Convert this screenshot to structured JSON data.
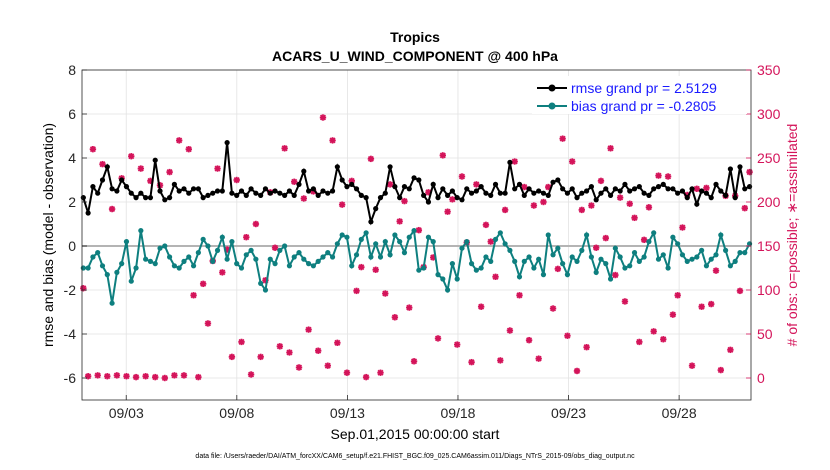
{
  "colors": {
    "rmse": "#000000",
    "bias": "#0e7f7f",
    "obs": "#d4145a",
    "zero": "#b4b4b4",
    "grid": "#e2e2e2"
  },
  "chart_data": {
    "type": "line",
    "title": "Tropics",
    "subtitle": "ACARS_U_WIND_COMPONENT @ 400 hPa",
    "xlabel": "Sep.01,2015 00:00:00 start",
    "ylabel": "rmse and bias (model - observation)",
    "ylabel_right": "# of obs: o=possible; ∗=assimilated",
    "footnote": "data file: /Users/raeder/DAI/ATM_forcXX/CAM6_setup/f.e21.FHIST_BGC.f09_025.CAM6assim.011/Diags_NTrS_2015-09/obs_diag_output.nc",
    "x_ticks": [
      {
        "label": "09/03",
        "day": 3
      },
      {
        "label": "09/08",
        "day": 8
      },
      {
        "label": "09/13",
        "day": 13
      },
      {
        "label": "09/18",
        "day": 18
      },
      {
        "label": "09/23",
        "day": 23
      },
      {
        "label": "09/28",
        "day": 28
      }
    ],
    "xlim_days": [
      1.0,
      31.25
    ],
    "ylim": [
      -7,
      8
    ],
    "y_ticks": [
      "-6",
      "-4",
      "-2",
      "0",
      "2",
      "4",
      "6",
      "8"
    ],
    "y2lim": [
      -25,
      350
    ],
    "y2_ticks": [
      "0",
      "50",
      "100",
      "150",
      "200",
      "250",
      "300",
      "350"
    ],
    "series": [
      {
        "name": "rmse grand pr = 2.5129",
        "values": [
          2.2,
          1.5,
          2.7,
          2.4,
          3.0,
          3.6,
          2.6,
          2.5,
          3.0,
          2.7,
          2.4,
          2.2,
          2.4,
          2.2,
          2.2,
          3.9,
          2.5,
          2.1,
          2.2,
          2.8,
          2.5,
          2.6,
          2.4,
          2.6,
          2.6,
          2.2,
          2.3,
          2.4,
          2.5,
          2.5,
          4.7,
          2.4,
          2.3,
          2.5,
          2.3,
          2.6,
          2.4,
          2.3,
          2.6,
          2.4,
          2.5,
          2.4,
          2.3,
          2.5,
          2.3,
          2.8,
          3.4,
          2.5,
          2.6,
          2.3,
          2.5,
          2.4,
          2.5,
          3.6,
          3.0,
          2.7,
          2.8,
          2.6,
          2.3,
          2.2,
          1.1,
          1.7,
          2.2,
          2.4,
          3.6,
          2.7,
          2.2,
          2.7,
          2.6,
          3.1,
          3.0,
          2.3,
          2.0,
          2.8,
          2.2,
          2.6,
          2.3,
          2.5,
          2.2,
          2.1,
          2.6,
          2.4,
          2.5,
          2.7,
          2.4,
          2.3,
          2.8,
          2.4,
          2.4,
          3.8,
          2.6,
          2.8,
          2.3,
          2.6,
          2.4,
          2.5,
          2.4,
          2.3,
          2.9,
          3.0,
          2.6,
          2.4,
          2.6,
          2.2,
          2.4,
          2.5,
          2.7,
          2.1,
          2.4,
          2.6,
          2.3,
          2.6,
          2.5,
          2.8,
          2.5,
          2.6,
          2.7,
          2.4,
          2.3,
          2.6,
          2.7,
          2.8,
          2.6,
          2.6,
          2.4,
          2.5,
          2.2,
          2.6,
          1.9,
          2.5,
          2.4,
          2.2,
          2.8,
          2.5,
          2.3,
          3.5,
          2.2,
          3.6,
          2.6,
          2.7
        ]
      },
      {
        "name": "bias grand pr = -0.2805",
        "values": [
          -1.0,
          -1.0,
          -0.5,
          -0.3,
          -0.9,
          -1.3,
          -2.6,
          -1.2,
          -0.8,
          0.2,
          -1.6,
          -1.0,
          0.7,
          -0.6,
          -0.7,
          -0.8,
          -0.1,
          0.0,
          -0.5,
          -0.9,
          -1.0,
          -0.7,
          -0.5,
          -0.9,
          -0.3,
          0.3,
          0.0,
          -0.7,
          -0.2,
          0.4,
          -0.6,
          0.2,
          -0.8,
          -1.0,
          -0.4,
          -0.2,
          -0.6,
          -1.7,
          -2.0,
          -0.6,
          -0.8,
          -0.2,
          0.0,
          -0.9,
          -0.5,
          -0.3,
          -0.6,
          -0.8,
          -0.9,
          -0.7,
          -0.5,
          -0.3,
          -0.5,
          0.1,
          0.5,
          0.4,
          -0.9,
          -0.4,
          0.3,
          0.6,
          -0.5,
          0.1,
          -0.5,
          0.2,
          -0.4,
          0.5,
          0.2,
          -0.3,
          0.4,
          0.7,
          -1.1,
          -1.0,
          0.4,
          0.2,
          -1.3,
          -1.5,
          -2.0,
          -0.8,
          -1.5,
          -0.1,
          0.2,
          -0.8,
          -1.1,
          -1.0,
          -0.5,
          -0.7,
          0.3,
          0.6,
          0.1,
          -0.2,
          -0.7,
          -1.4,
          -0.7,
          -0.5,
          -1.0,
          -0.6,
          -1.3,
          0.5,
          -0.4,
          -0.1,
          -0.8,
          -1.3,
          -0.5,
          -0.7,
          -0.2,
          0.5,
          -0.5,
          -1.2,
          -0.6,
          -0.8,
          -1.5,
          -0.1,
          -0.5,
          -1.0,
          -0.9,
          -0.3,
          -0.7,
          -0.5,
          0.2,
          0.6,
          -0.6,
          -0.4,
          -1.0,
          0.4,
          0.1,
          -0.4,
          -0.7,
          -0.6,
          -0.5,
          -0.2,
          -0.9,
          -0.6,
          -0.4,
          0.5,
          -0.2,
          -0.9,
          -0.7,
          -0.3,
          -0.3,
          0.1
        ]
      }
    ],
    "obs_assimilated": [
      102,
      2,
      260,
      3,
      243,
      2,
      192,
      3,
      227,
      2,
      252,
      1,
      238,
      2,
      224,
      1,
      219,
      0,
      234,
      3,
      270,
      3,
      260,
      94,
      1,
      107,
      62,
      133,
      238,
      120,
      146,
      24,
      225,
      41,
      160,
      4,
      175,
      24,
      111,
      211,
      148,
      36,
      261,
      29,
      223,
      12,
      204,
      55,
      212,
      31,
      296,
      14,
      270,
      40,
      197,
      6,
      224,
      99,
      126,
      1,
      249,
      123,
      6,
      96,
      220,
      69,
      178,
      201,
      80,
      19,
      168,
      126,
      211,
      137,
      45,
      253,
      189,
      203,
      38,
      229,
      154,
      18,
      220,
      81,
      174,
      155,
      115,
      20,
      191,
      54,
      246,
      94,
      217,
      43,
      196,
      22,
      200,
      217,
      79,
      124,
      272,
      48,
      246,
      8,
      191,
      35,
      196,
      148,
      224,
      159,
      261,
      117,
      205,
      87,
      198,
      182,
      41,
      157,
      194,
      53,
      230,
      44,
      229,
      72,
      94,
      171,
      208,
      14,
      215,
      81,
      216,
      84,
      122,
      9,
      207,
      32,
      207,
      99,
      193,
      234
    ]
  },
  "legend": {
    "rmse_label": "rmse grand pr = 2.5129",
    "bias_label": "bias grand pr = -0.2805"
  }
}
